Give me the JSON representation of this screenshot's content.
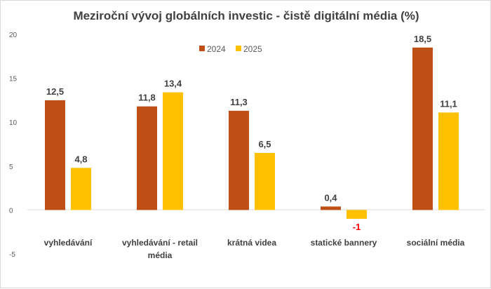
{
  "chart_data": {
    "type": "bar",
    "title": "Meziroční vývoj globálních investic - čistě digitální média (%)",
    "categories": [
      [
        "vyhledávání"
      ],
      [
        "vyhledávání - retail",
        "média"
      ],
      [
        "krátná videa"
      ],
      [
        "statické bannery"
      ],
      [
        "sociální média"
      ]
    ],
    "series": [
      {
        "name": "2024",
        "color": "#c04f15",
        "values": [
          12.5,
          11.8,
          11.3,
          0.4,
          18.5
        ],
        "labels": [
          "12,5",
          "11,8",
          "11,3",
          "0,4",
          "18,5"
        ]
      },
      {
        "name": "2025",
        "color": "#ffc000",
        "values": [
          4.8,
          13.4,
          6.5,
          -1,
          11.1
        ],
        "labels": [
          "4,8",
          "13,4",
          "6,5",
          "-1",
          "11,1"
        ]
      }
    ],
    "negative_label_color": "#ff0000",
    "yticks": [
      "20",
      "15",
      "10",
      "5",
      "0",
      "-5"
    ],
    "ylim": [
      -5,
      20
    ],
    "grid": false,
    "legend": "top-center"
  }
}
